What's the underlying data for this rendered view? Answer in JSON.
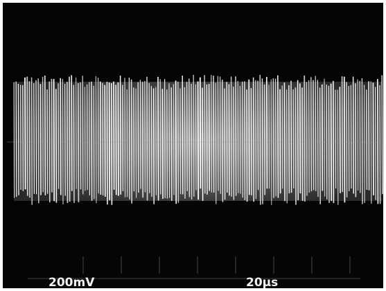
{
  "readout": {
    "volts_per_div": "200mV",
    "time_per_div": "20µs"
  }
}
